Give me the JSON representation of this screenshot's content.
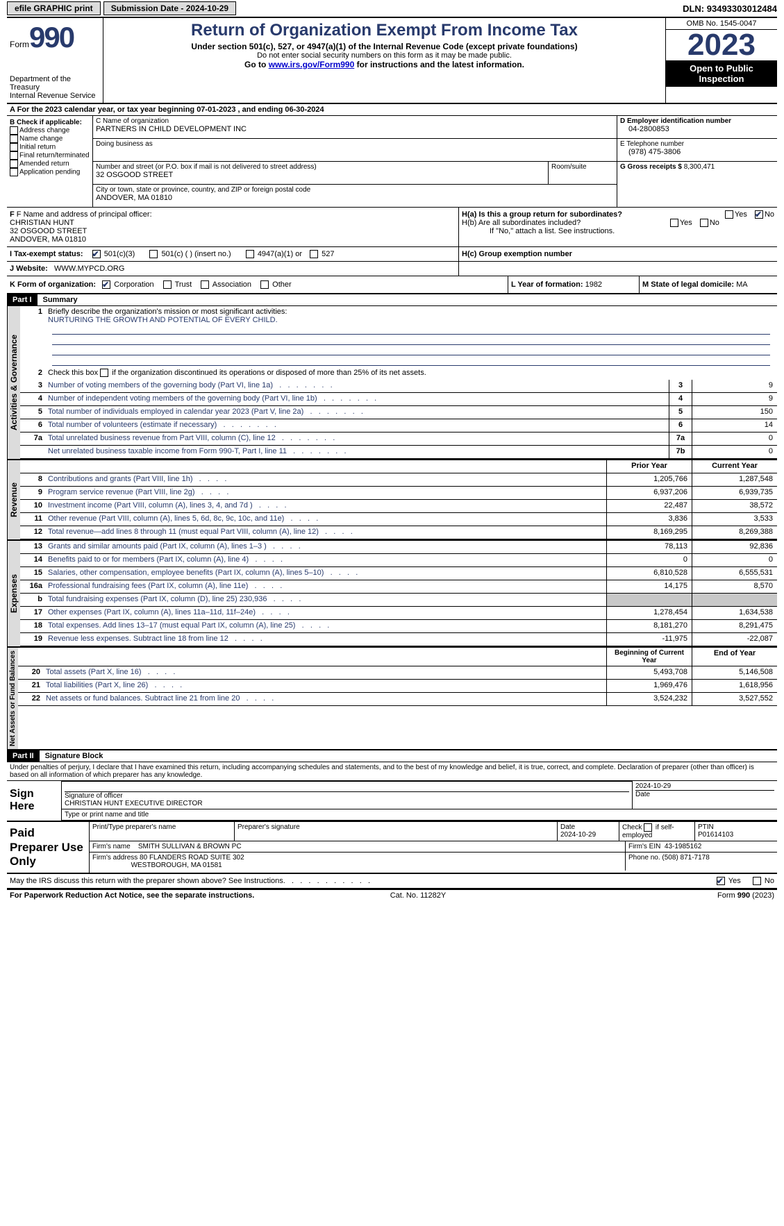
{
  "topbar": {
    "efile": "efile GRAPHIC print",
    "submission": "Submission Date - 2024-10-29",
    "dln_label": "DLN:",
    "dln": "93493303012484"
  },
  "header": {
    "form_label": "Form",
    "form_num": "990",
    "dept": "Department of the Treasury\nInternal Revenue Service",
    "title": "Return of Organization Exempt From Income Tax",
    "sub1": "Under section 501(c), 527, or 4947(a)(1) of the Internal Revenue Code (except private foundations)",
    "sub2": "Do not enter social security numbers on this form as it may be made public.",
    "sub3_prefix": "Go to ",
    "sub3_link": "www.irs.gov/Form990",
    "sub3_suffix": " for instructions and the latest information.",
    "omb": "OMB No. 1545-0047",
    "year": "2023",
    "open": "Open to Public Inspection"
  },
  "rowA": "A For the 2023 calendar year, or tax year beginning 07-01-2023    , and ending 06-30-2024",
  "boxB": {
    "label": "B Check if applicable:",
    "items": [
      "Address change",
      "Name change",
      "Initial return",
      "Final return/terminated",
      "Amended return",
      "Application pending"
    ]
  },
  "boxC": {
    "name_label": "C Name of organization",
    "name": "PARTNERS IN CHILD DEVELOPMENT INC",
    "dba_label": "Doing business as",
    "dba": "",
    "street_label": "Number and street (or P.O. box if mail is not delivered to street address)",
    "room_label": "Room/suite",
    "street": "32 OSGOOD STREET",
    "city_label": "City or town, state or province, country, and ZIP or foreign postal code",
    "city": "ANDOVER, MA  01810"
  },
  "boxD": {
    "label": "D Employer identification number",
    "value": "04-2800853"
  },
  "boxE": {
    "label": "E Telephone number",
    "value": "(978) 475-3806"
  },
  "boxG": {
    "label": "G Gross receipts $",
    "value": "8,300,471"
  },
  "boxF": {
    "label": "F  Name and address of principal officer:",
    "name": "CHRISTIAN HUNT",
    "street": "32 OSGOOD STREET",
    "city": "ANDOVER, MA  01810"
  },
  "boxH": {
    "a": "H(a)  Is this a group return for subordinates?",
    "b": "H(b)  Are all subordinates included?",
    "b_note": "If \"No,\" attach a list. See instructions.",
    "c": "H(c)  Group exemption number",
    "yes": "Yes",
    "no": "No"
  },
  "boxI": {
    "label": "I   Tax-exempt status:",
    "opts": [
      "501(c)(3)",
      "501(c) (  ) (insert no.)",
      "4947(a)(1) or",
      "527"
    ]
  },
  "boxJ": {
    "label": "J   Website:",
    "value": "WWW.MYPCD.ORG"
  },
  "boxK": {
    "label": "K Form of organization:",
    "opts": [
      "Corporation",
      "Trust",
      "Association",
      "Other"
    ]
  },
  "boxL": {
    "label": "L Year of formation:",
    "value": "1982"
  },
  "boxM": {
    "label": "M State of legal domicile:",
    "value": "MA"
  },
  "part1": {
    "hdr": "Part I",
    "title": "Summary"
  },
  "summary": {
    "l1_label": "Briefly describe the organization's mission or most significant activities:",
    "l1_value": "NURTURING THE GROWTH AND POTENTIAL OF EVERY CHILD.",
    "l2": "Check this box       if the organization discontinued its operations or disposed of more than 25% of its net assets.",
    "rows_gov": [
      {
        "n": "3",
        "d": "Number of voting members of the governing body (Part VI, line 1a)",
        "b": "3",
        "v": "9"
      },
      {
        "n": "4",
        "d": "Number of independent voting members of the governing body (Part VI, line 1b)",
        "b": "4",
        "v": "9"
      },
      {
        "n": "5",
        "d": "Total number of individuals employed in calendar year 2023 (Part V, line 2a)",
        "b": "5",
        "v": "150"
      },
      {
        "n": "6",
        "d": "Total number of volunteers (estimate if necessary)",
        "b": "6",
        "v": "14"
      },
      {
        "n": "7a",
        "d": "Total unrelated business revenue from Part VIII, column (C), line 12",
        "b": "7a",
        "v": "0"
      },
      {
        "n": "",
        "d": "Net unrelated business taxable income from Form 990-T, Part I, line 11",
        "b": "7b",
        "v": "0"
      }
    ],
    "col_prior": "Prior Year",
    "col_current": "Current Year",
    "rows_rev": [
      {
        "n": "8",
        "d": "Contributions and grants (Part VIII, line 1h)",
        "p": "1,205,766",
        "c": "1,287,548"
      },
      {
        "n": "9",
        "d": "Program service revenue (Part VIII, line 2g)",
        "p": "6,937,206",
        "c": "6,939,735"
      },
      {
        "n": "10",
        "d": "Investment income (Part VIII, column (A), lines 3, 4, and 7d )",
        "p": "22,487",
        "c": "38,572"
      },
      {
        "n": "11",
        "d": "Other revenue (Part VIII, column (A), lines 5, 6d, 8c, 9c, 10c, and 11e)",
        "p": "3,836",
        "c": "3,533"
      },
      {
        "n": "12",
        "d": "Total revenue—add lines 8 through 11 (must equal Part VIII, column (A), line 12)",
        "p": "8,169,295",
        "c": "8,269,388"
      }
    ],
    "rows_exp": [
      {
        "n": "13",
        "d": "Grants and similar amounts paid (Part IX, column (A), lines 1–3 )",
        "p": "78,113",
        "c": "92,836"
      },
      {
        "n": "14",
        "d": "Benefits paid to or for members (Part IX, column (A), line 4)",
        "p": "0",
        "c": "0"
      },
      {
        "n": "15",
        "d": "Salaries, other compensation, employee benefits (Part IX, column (A), lines 5–10)",
        "p": "6,810,528",
        "c": "6,555,531"
      },
      {
        "n": "16a",
        "d": "Professional fundraising fees (Part IX, column (A), line 11e)",
        "p": "14,175",
        "c": "8,570"
      },
      {
        "n": "b",
        "d": "Total fundraising expenses (Part IX, column (D), line 25) 230,936",
        "p": "",
        "c": "",
        "shade": true
      },
      {
        "n": "17",
        "d": "Other expenses (Part IX, column (A), lines 11a–11d, 11f–24e)",
        "p": "1,278,454",
        "c": "1,634,538"
      },
      {
        "n": "18",
        "d": "Total expenses. Add lines 13–17 (must equal Part IX, column (A), line 25)",
        "p": "8,181,270",
        "c": "8,291,475"
      },
      {
        "n": "19",
        "d": "Revenue less expenses. Subtract line 18 from line 12",
        "p": "-11,975",
        "c": "-22,087"
      }
    ],
    "col_begin": "Beginning of Current Year",
    "col_end": "End of Year",
    "rows_net": [
      {
        "n": "20",
        "d": "Total assets (Part X, line 16)",
        "p": "5,493,708",
        "c": "5,146,508"
      },
      {
        "n": "21",
        "d": "Total liabilities (Part X, line 26)",
        "p": "1,969,476",
        "c": "1,618,956"
      },
      {
        "n": "22",
        "d": "Net assets or fund balances. Subtract line 21 from line 20",
        "p": "3,524,232",
        "c": "3,527,552"
      }
    ],
    "tabs": [
      "Activities & Governance",
      "Revenue",
      "Expenses",
      "Net Assets or Fund Balances"
    ]
  },
  "part2": {
    "hdr": "Part II",
    "title": "Signature Block"
  },
  "penalties": "Under penalties of perjury, I declare that I have examined this return, including accompanying schedules and statements, and to the best of my knowledge and belief, it is true, correct, and complete. Declaration of preparer (other than officer) is based on all information of which preparer has any knowledge.",
  "sign": {
    "label": "Sign Here",
    "sig_label": "Signature of officer",
    "date_label": "Date",
    "date": "2024-10-29",
    "name": "CHRISTIAN HUNT EXECUTIVE DIRECTOR",
    "name_label": "Type or print name and title"
  },
  "paid": {
    "label": "Paid Preparer Use Only",
    "c1": "Print/Type preparer's name",
    "c2": "Preparer's signature",
    "c3_label": "Date",
    "c3": "2024-10-29",
    "c4_label": "Check",
    "c4_suffix": "if self-employed",
    "c5_label": "PTIN",
    "c5": "P01614103",
    "firm_name_label": "Firm's name",
    "firm_name": "SMITH SULLIVAN & BROWN PC",
    "firm_ein_label": "Firm's EIN",
    "firm_ein": "43-1985162",
    "firm_addr_label": "Firm's address",
    "firm_addr1": "80 FLANDERS ROAD SUITE 302",
    "firm_addr2": "WESTBOROUGH, MA  01581",
    "phone_label": "Phone no.",
    "phone": "(508) 871-7178"
  },
  "discuss": "May the IRS discuss this return with the preparer shown above? See Instructions.",
  "footer": {
    "l": "For Paperwork Reduction Act Notice, see the separate instructions.",
    "c": "Cat. No. 11282Y",
    "r": "Form 990 (2023)"
  },
  "colors": {
    "brand": "#283a6c",
    "shade": "#dcdcdc"
  }
}
